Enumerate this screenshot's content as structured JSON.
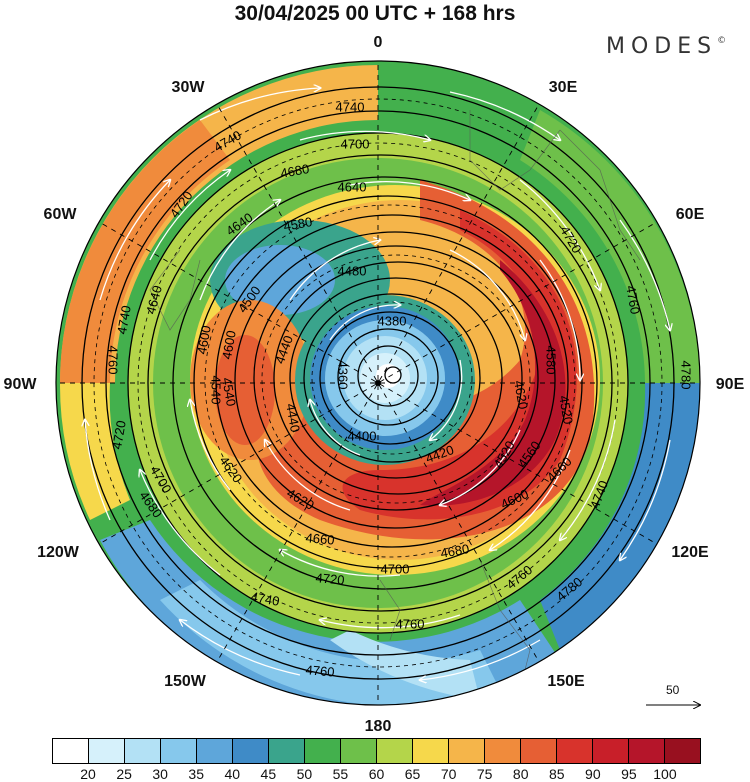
{
  "title": "30/04/2025  00 UTC  + 168 hrs",
  "brand": {
    "name": "MODES",
    "mark": "©"
  },
  "longitude_labels": {
    "top": "0",
    "top_right": "30E",
    "right_upper": "60E",
    "right": "90E",
    "right_lower": "120E",
    "bottom_right": "150E",
    "bottom": "180",
    "bottom_left": "150W",
    "left_lower": "120W",
    "left": "90W",
    "left_upper": "60W",
    "top_left": "30W"
  },
  "vector_scale": {
    "label": "50"
  },
  "colorbar": {
    "colors": [
      "#ffffff",
      "#d6f1fb",
      "#b3e1f5",
      "#86c8ec",
      "#5ea6da",
      "#3f8bc7",
      "#3aa48c",
      "#43b04d",
      "#6ec04a",
      "#b4d54a",
      "#f6d84b",
      "#f5b54a",
      "#f08b3c",
      "#e65f34",
      "#d8332c",
      "#c81f29",
      "#b5152a",
      "#98101f"
    ],
    "ticks": [
      "20",
      "25",
      "30",
      "35",
      "40",
      "45",
      "50",
      "55",
      "60",
      "65",
      "70",
      "75",
      "80",
      "85",
      "90",
      "95",
      "100"
    ]
  },
  "contour_labels": [
    "4740",
    "4740",
    "4700",
    "4720",
    "4680",
    "4640",
    "4640",
    "4580",
    "4480",
    "4380",
    "4360",
    "4400",
    "4420",
    "4440",
    "4440",
    "4500",
    "4580",
    "4620",
    "4560",
    "4520",
    "4540",
    "4600",
    "4600",
    "4620",
    "4660",
    "4680",
    "4700",
    "4720",
    "4740",
    "4760",
    "4760",
    "4740",
    "4720",
    "4760",
    "4780",
    "4780",
    "4760",
    "4740",
    "4700",
    "4660",
    "4620",
    "4540",
    "4520",
    "4680",
    "4720",
    "4640",
    "4600",
    "4760"
  ]
}
